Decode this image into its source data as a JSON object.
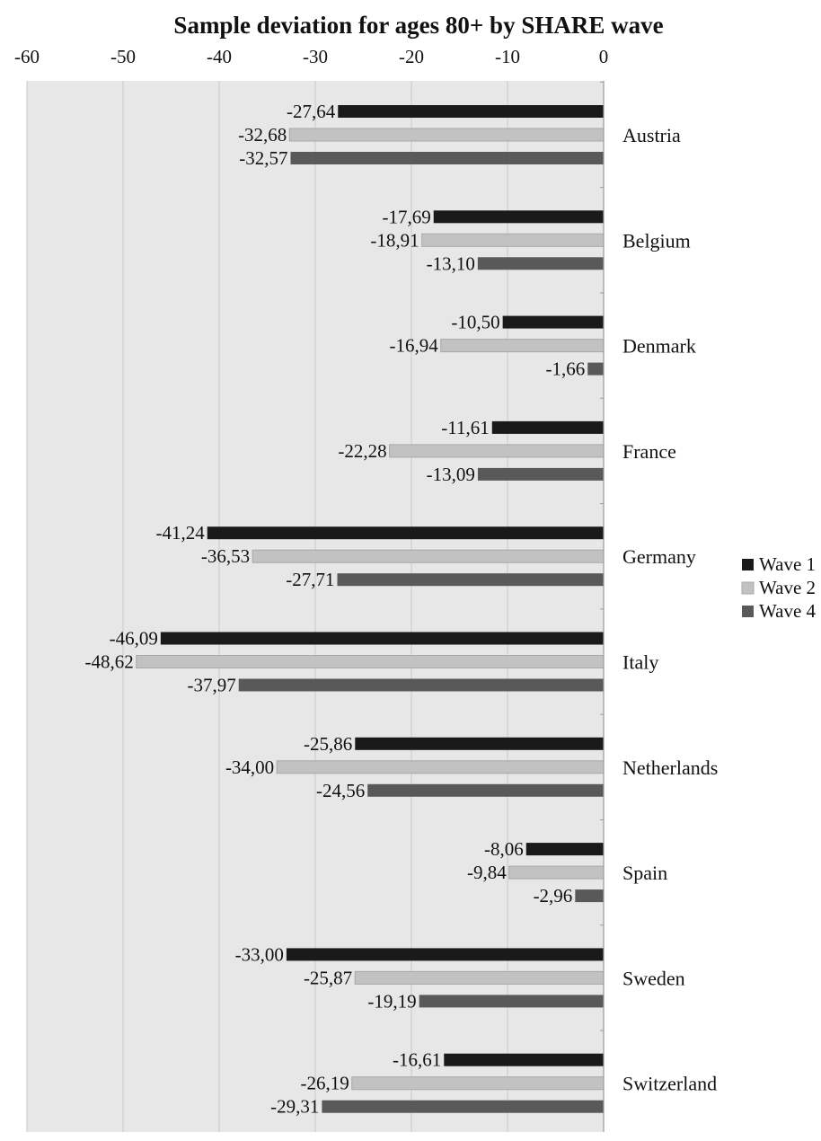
{
  "chart_data": {
    "type": "bar",
    "orientation": "horizontal",
    "title": "Sample deviation for ages 80+ by SHARE wave",
    "xlim": [
      -60,
      0
    ],
    "x_ticks": [
      "-60",
      "-50",
      "-40",
      "-30",
      "-20",
      "-10",
      "0"
    ],
    "x_tick_values": [
      -60,
      -50,
      -40,
      -30,
      -20,
      -10,
      0
    ],
    "axis_position": "top",
    "grid": true,
    "legend_position": "right",
    "categories": [
      "Austria",
      "Belgium",
      "Denmark",
      "France",
      "Germany",
      "Italy",
      "Netherlands",
      "Spain",
      "Sweden",
      "Switzerland"
    ],
    "series": [
      {
        "name": "Wave 1",
        "color": "#1a1a1a",
        "values": [
          -27.64,
          -17.69,
          -10.5,
          -11.61,
          -41.24,
          -46.09,
          -25.86,
          -8.06,
          -33.0,
          -16.61
        ],
        "labels": [
          "-27,64",
          "-17,69",
          "-10,50",
          "-11,61",
          "-41,24",
          "-46,09",
          "-25,86",
          "-8,06",
          "-33,00",
          "-16,61"
        ]
      },
      {
        "name": "Wave 2",
        "color": "#c2c2c2",
        "values": [
          -32.68,
          -18.91,
          -16.94,
          -22.28,
          -36.53,
          -48.62,
          -34.0,
          -9.84,
          -25.87,
          -26.19
        ],
        "labels": [
          "-32,68",
          "-18,91",
          "-16,94",
          "-22,28",
          "-36,53",
          "-48,62",
          "-34,00",
          "-9,84",
          "-25,87",
          "-26,19"
        ]
      },
      {
        "name": "Wave 4",
        "color": "#595959",
        "values": [
          -32.57,
          -13.1,
          -1.66,
          -13.09,
          -27.71,
          -37.97,
          -24.56,
          -2.96,
          -19.19,
          -29.31
        ],
        "labels": [
          "-32,57",
          "-13,10",
          "-1,66",
          "-13,09",
          "-27,71",
          "-37,97",
          "-24,56",
          "-2,96",
          "-19,19",
          "-29,31"
        ]
      }
    ],
    "plot_background": "#e7e7e7",
    "gridline_color": "#c8c8c8"
  }
}
